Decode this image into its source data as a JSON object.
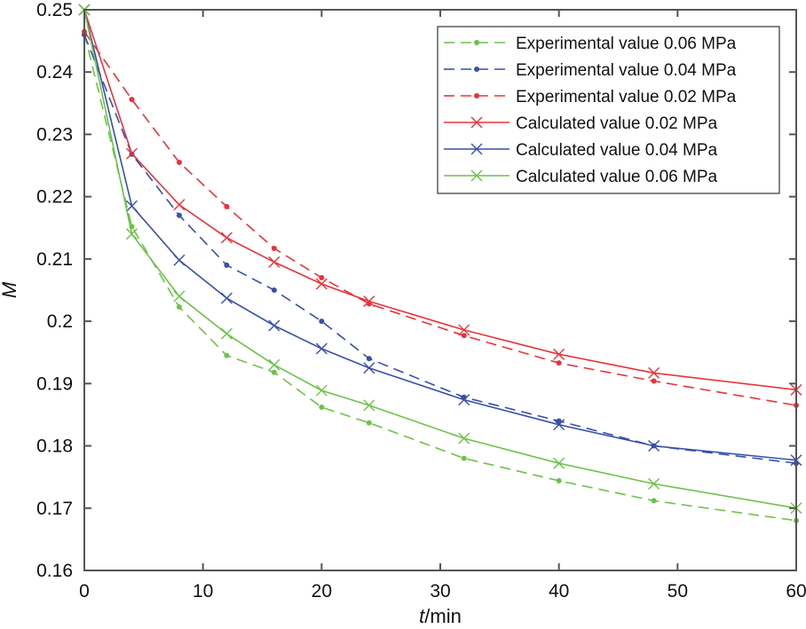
{
  "chart_data": {
    "type": "line",
    "title": "",
    "xlabel": "t/min",
    "xlabel_italic_part": "t",
    "xlabel_rest": "/min",
    "ylabel": "M",
    "xlim": [
      0,
      60
    ],
    "ylim": [
      0.16,
      0.25
    ],
    "xticks": [
      0,
      10,
      20,
      30,
      40,
      50,
      60
    ],
    "xtick_labels": [
      "0",
      "10",
      "20",
      "30",
      "40",
      "50",
      "60"
    ],
    "yticks": [
      0.16,
      0.17,
      0.18,
      0.19,
      0.2,
      0.21,
      0.22,
      0.23,
      0.24,
      0.25
    ],
    "ytick_labels": [
      "0.16",
      "0.17",
      "0.18",
      "0.19",
      "0.2",
      "0.21",
      "0.22",
      "0.23",
      "0.24",
      "0.25"
    ],
    "grid": false,
    "legend_position": "top-right",
    "x": [
      0,
      4,
      8,
      12,
      16,
      20,
      24,
      32,
      40,
      48,
      60
    ],
    "series": [
      {
        "name": "Experimental value 0.06 MPa",
        "color": "#6cc24a",
        "style": "dashed",
        "marker": "dot",
        "values": [
          0.2462,
          0.2152,
          0.2023,
          0.1945,
          0.1918,
          0.1862,
          0.1837,
          0.178,
          0.1744,
          0.1712,
          0.168
        ]
      },
      {
        "name": "Experimental value 0.04 MPa",
        "color": "#3a4fa8",
        "style": "dashed",
        "marker": "dot",
        "values": [
          0.246,
          0.2268,
          0.217,
          0.209,
          0.205,
          0.2,
          0.194,
          0.1878,
          0.184,
          0.18,
          0.1772
        ]
      },
      {
        "name": "Experimental value 0.02 MPa",
        "color": "#e8333a",
        "style": "dashed",
        "marker": "dot",
        "values": [
          0.2465,
          0.2356,
          0.2255,
          0.2184,
          0.2117,
          0.207,
          0.2028,
          0.1977,
          0.1933,
          0.1904,
          0.1865
        ]
      },
      {
        "name": "Calculated value 0.02 MPa",
        "color": "#e8333a",
        "style": "solid",
        "marker": "x",
        "values": [
          0.25,
          0.2269,
          0.2187,
          0.2134,
          0.2095,
          0.206,
          0.2032,
          0.1986,
          0.1947,
          0.1917,
          0.189
        ]
      },
      {
        "name": "Calculated value 0.04 MPa",
        "color": "#3a4fa8",
        "style": "solid",
        "marker": "x",
        "values": [
          0.25,
          0.2185,
          0.2098,
          0.2037,
          0.1993,
          0.1956,
          0.1925,
          0.1874,
          0.1834,
          0.18,
          0.1777
        ]
      },
      {
        "name": "Calculated value 0.06 MPa",
        "color": "#6cc24a",
        "style": "solid",
        "marker": "x",
        "values": [
          0.25,
          0.214,
          0.204,
          0.198,
          0.193,
          0.1889,
          0.1865,
          0.1812,
          0.1772,
          0.1739,
          0.17
        ]
      }
    ]
  }
}
